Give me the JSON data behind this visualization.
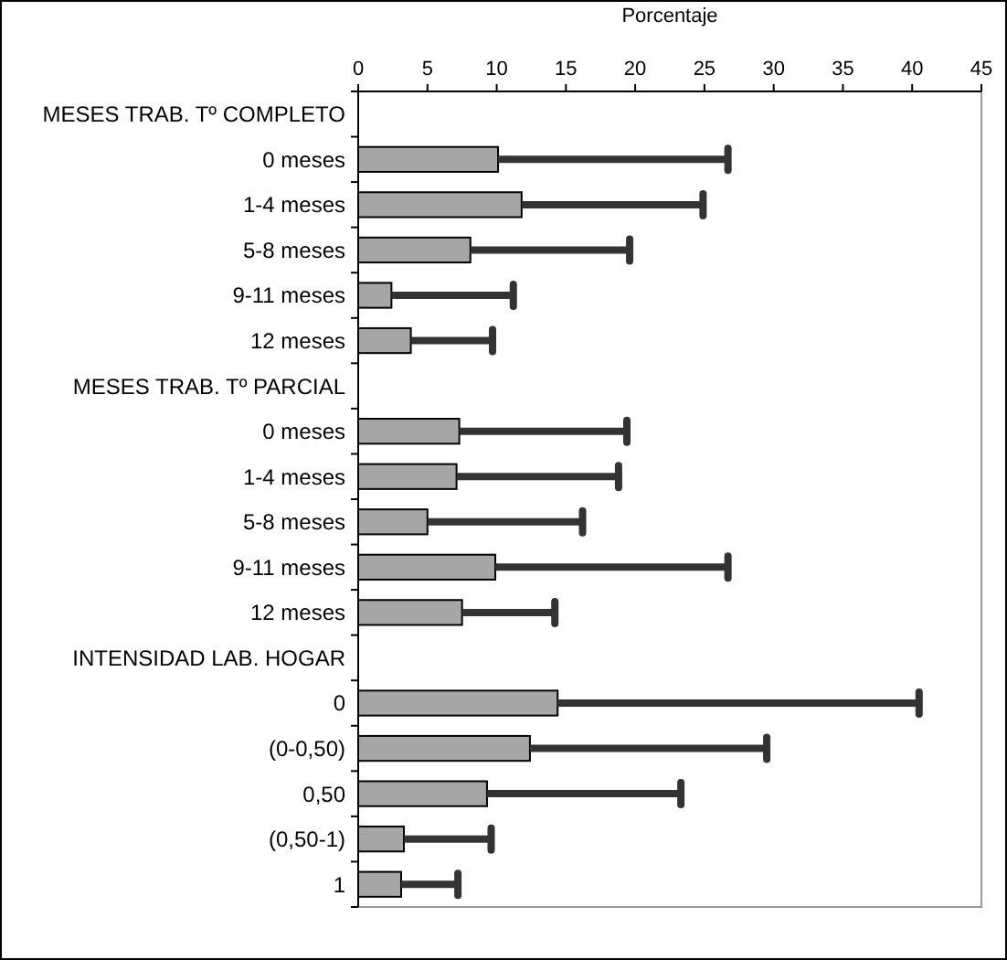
{
  "chart_data": {
    "type": "bar",
    "orientation": "horizontal",
    "xlabel": "Porcentaje",
    "categories": [
      "MESES TRAB. Tº COMPLETO",
      "0 meses",
      "1-4 meses",
      "5-8 meses",
      "9-11 meses",
      "12 meses",
      "MESES TRAB. Tº PARCIAL",
      "0 meses",
      "1-4 meses",
      "5-8 meses",
      "9-11 meses",
      "12 meses",
      "INTENSIDAD LAB. HOGAR",
      "0",
      "(0-0,50)",
      "0,50",
      "(0,50-1)",
      "1"
    ],
    "values": [
      null,
      10.1,
      11.8,
      8.1,
      2.4,
      3.8,
      null,
      7.3,
      7.1,
      5.0,
      9.9,
      7.5,
      null,
      14.4,
      12.4,
      9.3,
      3.3,
      3.1
    ],
    "errors": [
      null,
      [
        10.1,
        26.7
      ],
      [
        11.8,
        24.9
      ],
      [
        8.1,
        19.6
      ],
      [
        2.4,
        11.2
      ],
      [
        3.8,
        9.7
      ],
      null,
      [
        7.3,
        19.4
      ],
      [
        7.1,
        18.8
      ],
      [
        5.0,
        16.2
      ],
      [
        9.9,
        26.7
      ],
      [
        7.5,
        14.2
      ],
      null,
      [
        14.4,
        40.5
      ],
      [
        12.4,
        29.5
      ],
      [
        9.3,
        23.3
      ],
      [
        3.3,
        9.6
      ],
      [
        3.1,
        7.2
      ]
    ],
    "color": "#a6a6a6",
    "xlim": [
      0,
      45
    ],
    "xticks": [
      0,
      5,
      10,
      15,
      20,
      25,
      30,
      35,
      40,
      45
    ],
    "grid": false
  }
}
